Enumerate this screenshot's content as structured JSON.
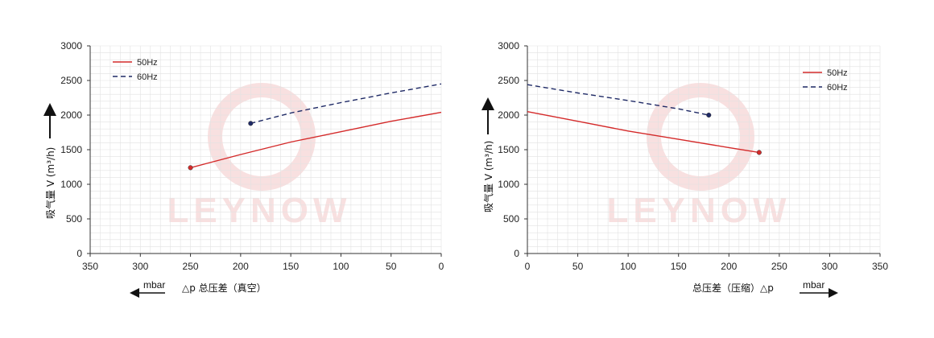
{
  "watermark": "LEYNOW",
  "colors": {
    "s50": "#d42a2a",
    "s60": "#1f2a66",
    "grid": "#e2e2e2",
    "axis": "#333333",
    "watermark": "#f3c7c7"
  },
  "chart_data": [
    {
      "type": "line",
      "direction": "reversed",
      "ylabel": "吸气量 V (m³/h)",
      "xlabel": "△p 总压差（真空）",
      "xunit": "mbar",
      "xlim": [
        350,
        0
      ],
      "ylim": [
        0,
        3000
      ],
      "xticks": [
        "350",
        "300",
        "250",
        "200",
        "150",
        "100",
        "50",
        "0"
      ],
      "yticks": [
        "0",
        "500",
        "1000",
        "1500",
        "2000",
        "2500",
        "3000"
      ],
      "legend_position": "top-left",
      "grid": true,
      "series": [
        {
          "name": "50Hz",
          "style": "solid",
          "x": [
            250,
            200,
            150,
            90,
            50,
            0
          ],
          "y": [
            1240,
            1430,
            1610,
            1790,
            1910,
            2040
          ]
        },
        {
          "name": "60Hz",
          "style": "dashed",
          "x": [
            190,
            150,
            100,
            50,
            0
          ],
          "y": [
            1880,
            2030,
            2180,
            2320,
            2450
          ]
        }
      ]
    },
    {
      "type": "line",
      "direction": "normal",
      "ylabel": "吸气量 V (m³/h)",
      "xlabel": "总压差（压缩）△p",
      "xunit": "mbar",
      "xlim": [
        0,
        350
      ],
      "ylim": [
        0,
        3000
      ],
      "xticks": [
        "0",
        "50",
        "100",
        "150",
        "200",
        "250",
        "300",
        "350"
      ],
      "yticks": [
        "0",
        "500",
        "1000",
        "1500",
        "2000",
        "2500",
        "3000"
      ],
      "legend_position": "top-right",
      "grid": true,
      "series": [
        {
          "name": "50Hz",
          "style": "solid",
          "x": [
            0,
            50,
            100,
            150,
            200,
            230
          ],
          "y": [
            2050,
            1910,
            1770,
            1650,
            1530,
            1460
          ]
        },
        {
          "name": "60Hz",
          "style": "dashed",
          "x": [
            0,
            50,
            100,
            150,
            180
          ],
          "y": [
            2440,
            2320,
            2210,
            2090,
            2000
          ]
        }
      ]
    }
  ]
}
